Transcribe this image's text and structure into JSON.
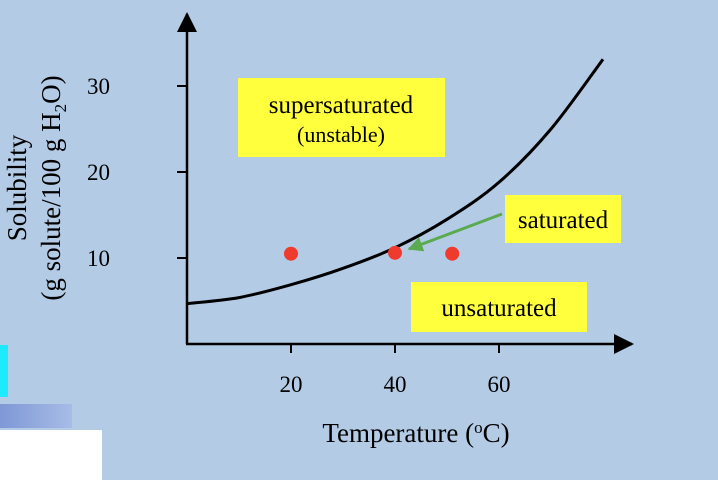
{
  "chart_data": {
    "type": "line",
    "title": "",
    "xlabel": "Temperature (oC)",
    "xlabel_parts": {
      "before": "Temperature (",
      "sup": "o",
      "after": "C)"
    },
    "ylabel_line1": "Solubility",
    "ylabel_line2_parts": {
      "before": "(g solute/100 g H",
      "sub": "2",
      "after": "O)"
    },
    "x_ticks": [
      20,
      40,
      60
    ],
    "y_ticks": [
      10,
      20,
      30
    ],
    "xlim": [
      0,
      85
    ],
    "ylim": [
      0,
      40
    ],
    "grid": false,
    "series": [
      {
        "x": [
          0,
          10,
          20,
          30,
          40,
          50,
          60,
          70,
          80
        ],
        "y": [
          4.7,
          5.4,
          6.9,
          8.8,
          11.2,
          14.5,
          18.8,
          25,
          33.1
        ]
      }
    ],
    "points": [
      {
        "x": 20,
        "y": 10.5
      },
      {
        "x": 40,
        "y": 10.6
      },
      {
        "x": 51,
        "y": 10.5
      }
    ],
    "annotations": {
      "supersaturated": "supersaturated",
      "unstable": "(unstable)",
      "saturated": "saturated",
      "unsaturated": "unsaturated"
    },
    "colors": {
      "curve": "#000000",
      "points": "#ee3b2e",
      "label_box": "#ffff3d",
      "arrow": "#5aaa50",
      "background": "#b4cbe6"
    }
  }
}
